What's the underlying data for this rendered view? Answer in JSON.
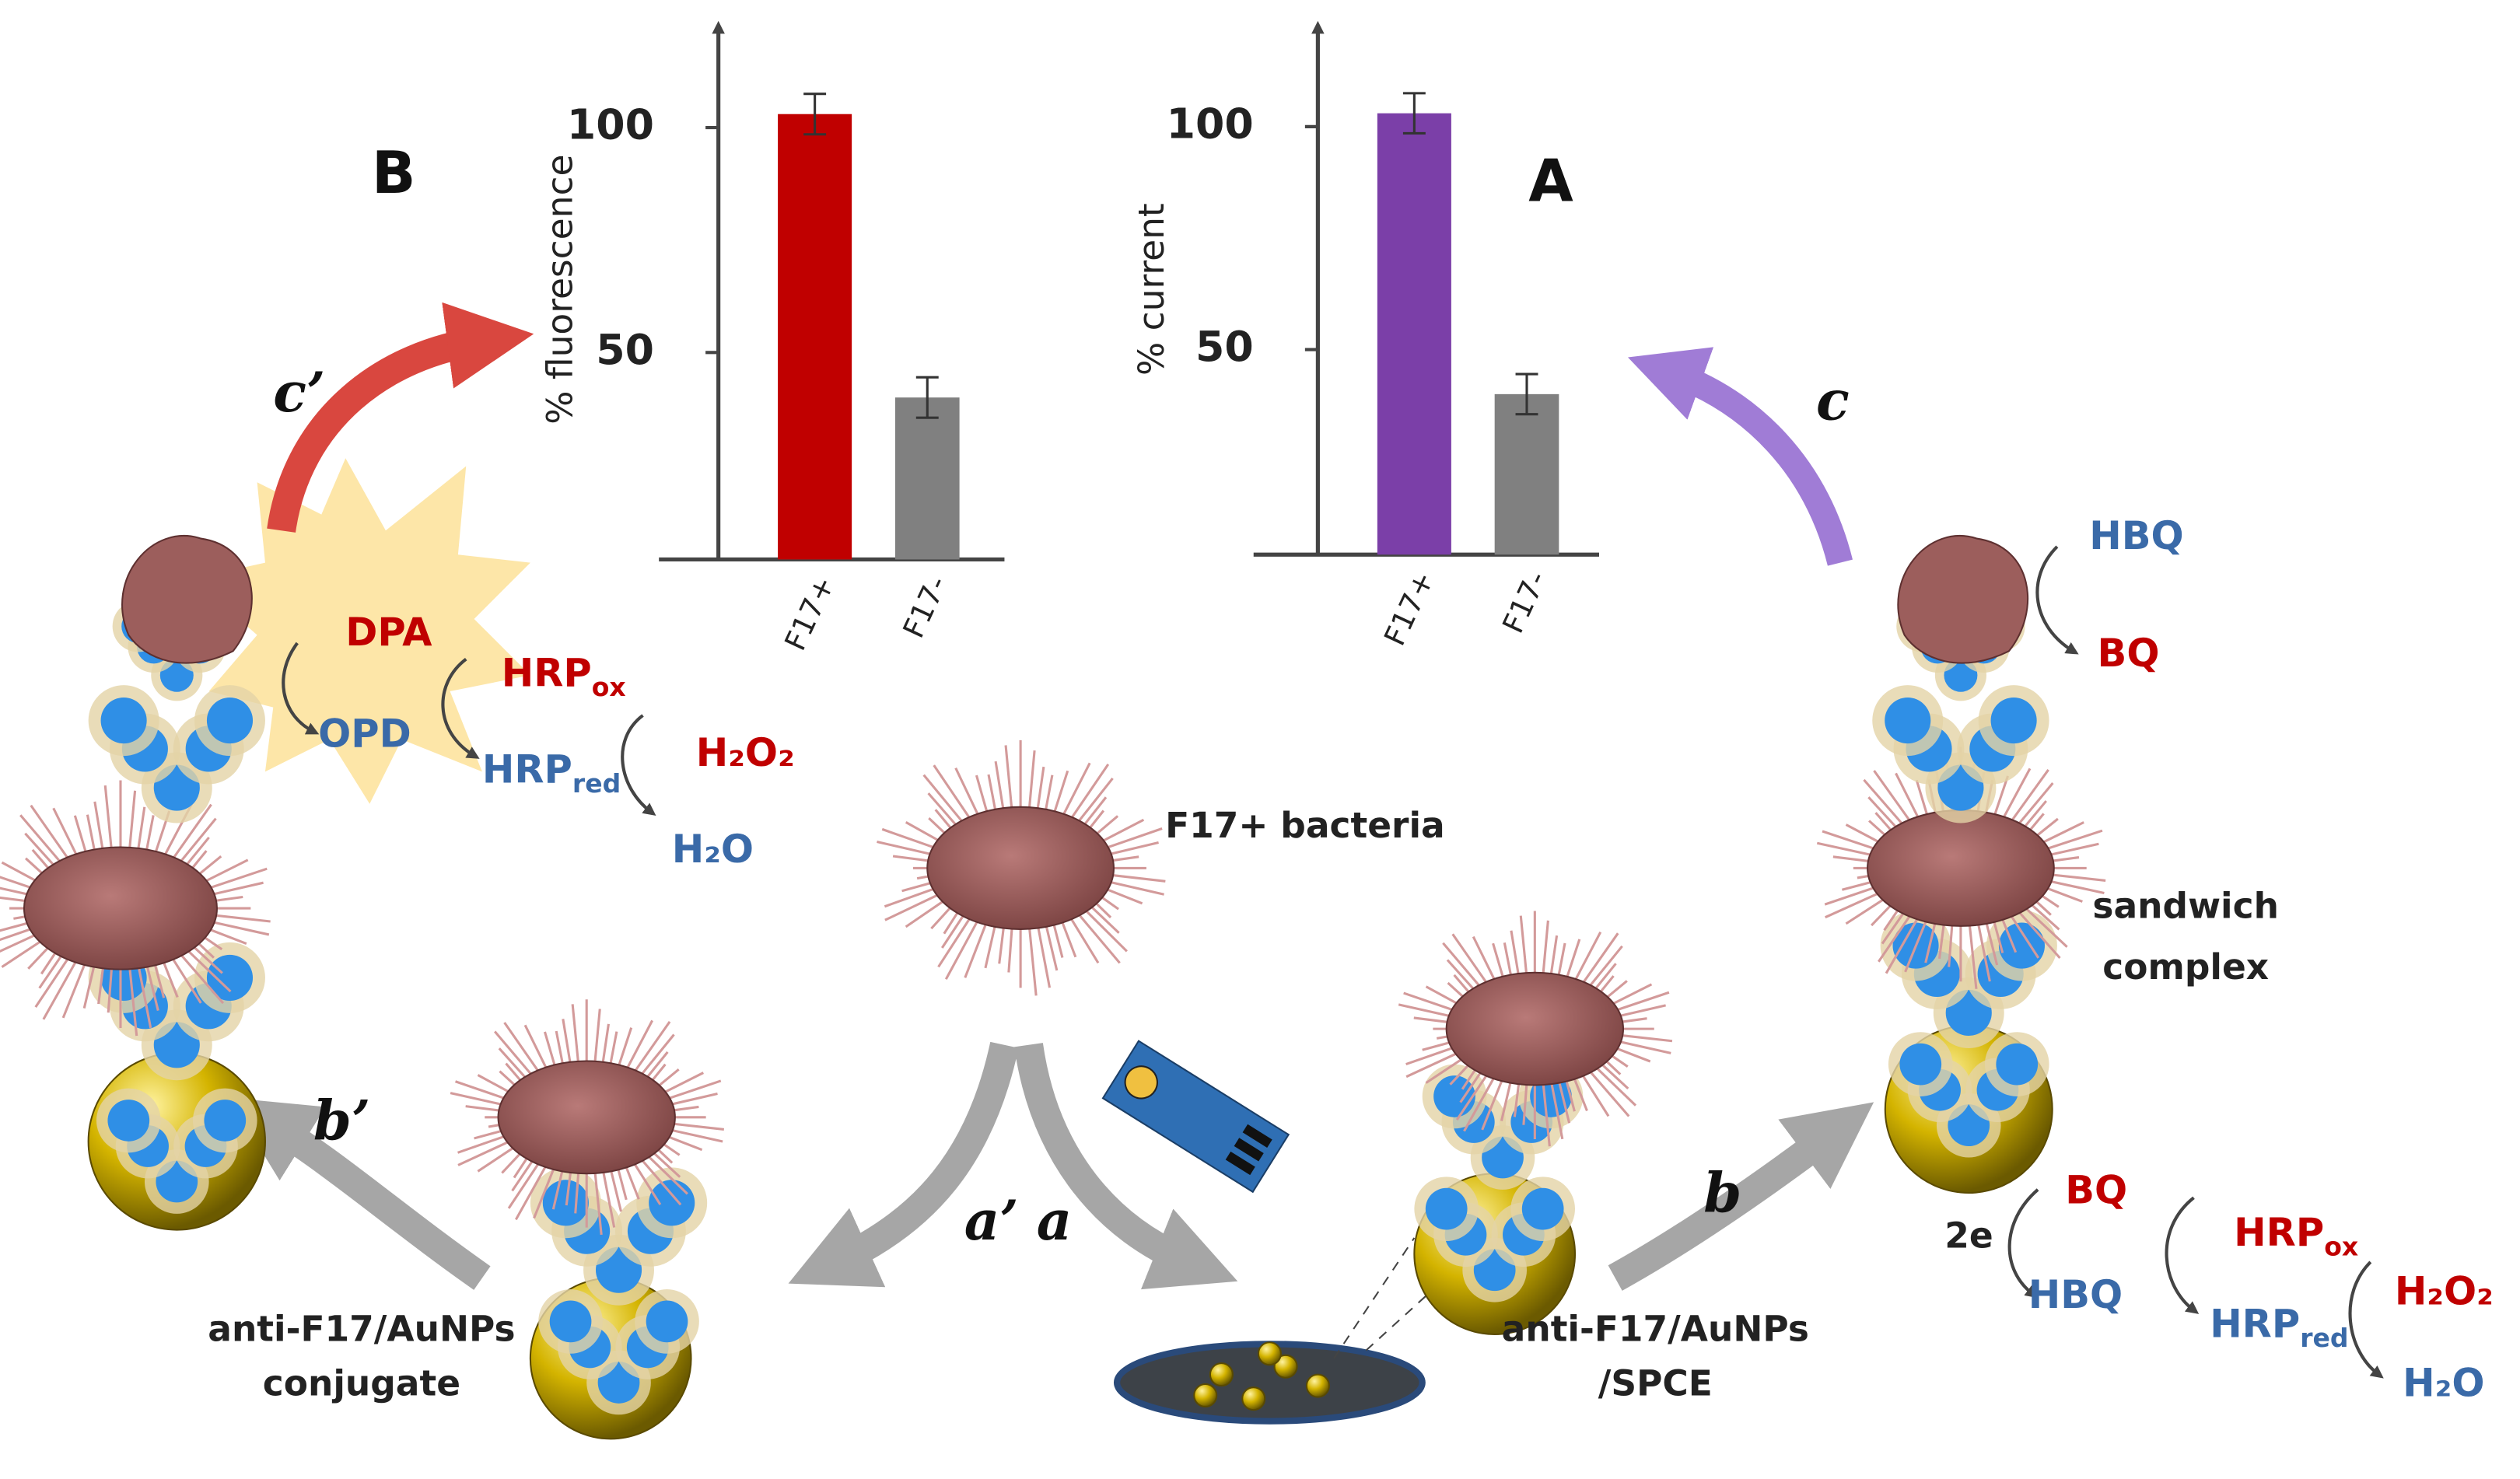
{
  "chart_data": [
    {
      "type": "bar",
      "panel": "B",
      "ylabel": "% fluorescence",
      "categories": [
        "F17+",
        "F17-"
      ],
      "values": [
        103,
        40
      ],
      "errors": [
        4.5,
        4.5
      ],
      "colors": [
        "#c00000",
        "#808080"
      ],
      "ylim": [
        4,
        123
      ],
      "yticks": [
        50,
        100
      ]
    },
    {
      "type": "bar",
      "panel": "A",
      "ylabel": "% current",
      "categories": [
        "F17+",
        "F17-"
      ],
      "values": [
        103,
        40
      ],
      "errors": [
        4.5,
        4.5
      ],
      "colors": [
        "#7b3fa8",
        "#808080"
      ],
      "ylim": [
        4,
        123
      ],
      "yticks": [
        50,
        100
      ]
    }
  ],
  "diagram": {
    "bacteria": "F17+ bacteria",
    "sandwich": [
      "sandwich",
      "complex"
    ],
    "conjugate": [
      "anti-F17/AuNPs",
      "conjugate"
    ],
    "spce": [
      "anti-F17/AuNPs",
      "/SPCE"
    ],
    "steps": [
      "a’",
      "a",
      "b’",
      "b",
      "c’",
      "c"
    ],
    "left_cycle": {
      "dpa": "DPA",
      "opd": "OPD",
      "hrp_ox": {
        "text": "HRP",
        "sub": "ox"
      },
      "hrp_red": {
        "text": "HRP",
        "sub": "red"
      },
      "h2o2": "H₂O₂",
      "h2o": "H₂O"
    },
    "top_right": {
      "hbq": "HBQ",
      "bq": "BQ"
    },
    "bottom_right": {
      "electrons": "2e",
      "bq": "BQ",
      "hbq": "HBQ",
      "hrp_ox": {
        "text": "HRP",
        "sub": "ox"
      },
      "hrp_red": {
        "text": "HRP",
        "sub": "red"
      },
      "h2o2": "H₂O₂",
      "h2o": "H₂O"
    }
  }
}
